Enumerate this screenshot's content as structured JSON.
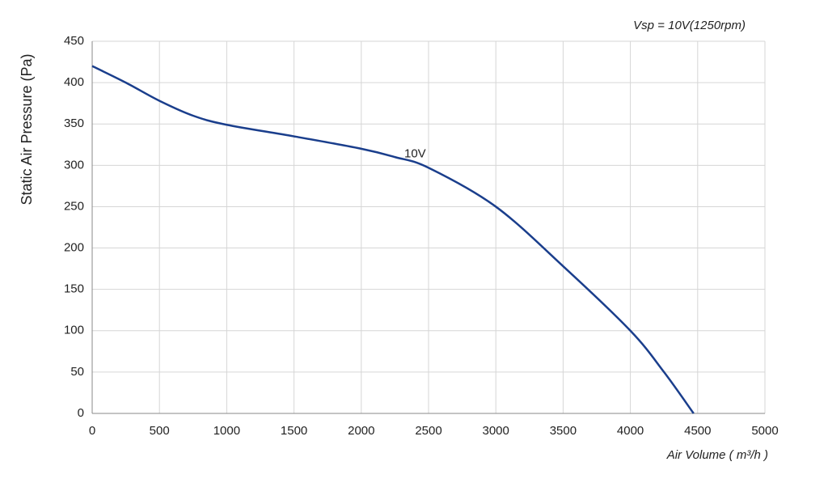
{
  "chart_data": {
    "type": "line",
    "subtitle": "Vsp = 10V(1250rpm)",
    "x_label": "Air Volume ( m³/h )",
    "y_label": "Static Air Pressure  (Pa)",
    "x": [
      0,
      250,
      500,
      750,
      1000,
      1500,
      2000,
      2250,
      2500,
      3000,
      3500,
      4000,
      4250,
      4470
    ],
    "series": [
      {
        "name": "10V",
        "color": "#1a3e8c",
        "values": [
          420,
          400,
          378,
          360,
          349,
          335,
          320,
          310,
          297,
          250,
          178,
          100,
          50,
          0
        ]
      }
    ],
    "xlim": [
      0,
      5000
    ],
    "xticks": [
      0,
      500,
      1000,
      1500,
      2000,
      2500,
      3000,
      3500,
      4000,
      4500,
      5000
    ],
    "ylim": [
      0,
      450
    ],
    "yticks": [
      0,
      50,
      100,
      150,
      200,
      250,
      300,
      350,
      400,
      450
    ],
    "grid": true
  }
}
